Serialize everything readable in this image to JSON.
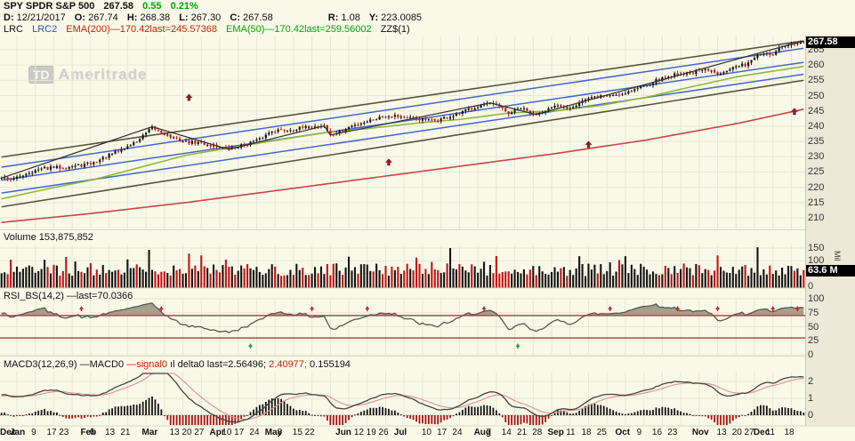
{
  "header": {
    "symbol": "SPY SPDR S&P 500",
    "last_price": "267.58",
    "change": "0.55",
    "change_pct": "0.21%",
    "d_label": "D:",
    "d_value": "12/21/2017",
    "o_label": "O:",
    "o_value": "267.74",
    "h_label": "H:",
    "h_value": "268.38",
    "l_label": "L:",
    "l_value": "267.30",
    "c_label": "C:",
    "c_value": "267.58",
    "r_label": "R:",
    "r_value": "1.08",
    "y_label": "Y:",
    "y_value": "223.0085",
    "legend_lrc": "LRC",
    "legend_lrc2": "LRC2",
    "legend_ema200": "EMA(200)—170.42last=245.57368",
    "legend_ema50": "EMA(50)—170.42last=259.56002",
    "legend_zz": "ZZ$(1)"
  },
  "watermark": {
    "td": "TD",
    "name": "Ameritrade"
  },
  "volume_label": "Volume 153,875,852",
  "rsi_label": "RSI_BS(14,2) —last=70.0366",
  "macd_label": {
    "name": "MACD3(12,26,9)",
    "macd": "—MACD0",
    "signal": "—signal0",
    "hist_icon": "ıl",
    "delta": "delta0",
    "last": "last=2.56496;",
    "sig_last": "2.40977;",
    "delta_last": "0.155194"
  },
  "badges": {
    "price_last": "267.58",
    "volume_last": "63.6 M"
  },
  "axis_unit": "Mil",
  "colors": {
    "candle_up": "#141414",
    "candle_down": "#c41414",
    "vol_up": "#141414",
    "vol_down": "#c41414",
    "ema50": "#8fb83e",
    "ema200": "#c94442",
    "lrc_dark": "#55543c",
    "lrc2_blue": "#4466cc",
    "zigzag": "#33312c",
    "rsi_line": "#5a564e",
    "rsi_band": "#b04848",
    "rsi_fill": "#8f8c76",
    "macd_line": "#44423a",
    "signal_line": "#e09090",
    "hist_up": "#141414",
    "hist_down": "#aa1111",
    "arrow": "#8b1f1f",
    "marker_red": "#cc2222",
    "marker_green": "#2a9a2a",
    "grid": "#e7e7d3",
    "background": "#f9f9e9",
    "gutter": "#ece9d8"
  },
  "chart_data": {
    "type": "candlestick-multi-panel",
    "seed": 42,
    "x_axis": {
      "days": 262,
      "labels": [
        {
          "t": "Dec",
          "d": 0
        },
        {
          "t": "Jan",
          "d": 5
        },
        {
          "t": "9",
          "d": 12
        },
        {
          "t": "17",
          "d": 17
        },
        {
          "t": "23",
          "d": 21
        },
        {
          "t": "Feb",
          "d": 28
        },
        {
          "t": "6",
          "d": 31
        },
        {
          "t": "13",
          "d": 36
        },
        {
          "t": "21",
          "d": 41
        },
        {
          "t": "Mar",
          "d": 48
        },
        {
          "t": "13",
          "d": 57
        },
        {
          "t": "20",
          "d": 61
        },
        {
          "t": "27",
          "d": 65
        },
        {
          "t": "Apr",
          "d": 70
        },
        {
          "t": "10",
          "d": 74
        },
        {
          "t": "17",
          "d": 78
        },
        {
          "t": "24",
          "d": 83
        },
        {
          "t": "May",
          "d": 88
        },
        {
          "t": "8",
          "d": 92
        },
        {
          "t": "15",
          "d": 97
        },
        {
          "t": "22",
          "d": 101
        },
        {
          "t": "Jun",
          "d": 111
        },
        {
          "t": "12",
          "d": 117
        },
        {
          "t": "19",
          "d": 121
        },
        {
          "t": "26",
          "d": 125
        },
        {
          "t": "Jul",
          "d": 130
        },
        {
          "t": "10",
          "d": 139
        },
        {
          "t": "17",
          "d": 144
        },
        {
          "t": "24",
          "d": 149
        },
        {
          "t": "Aug",
          "d": 156
        },
        {
          "t": "7",
          "d": 160
        },
        {
          "t": "14",
          "d": 165
        },
        {
          "t": "21",
          "d": 170
        },
        {
          "t": "28",
          "d": 175
        },
        {
          "t": "Sep",
          "d": 180
        },
        {
          "t": "11",
          "d": 186
        },
        {
          "t": "18",
          "d": 191
        },
        {
          "t": "25",
          "d": 196
        },
        {
          "t": "Oct",
          "d": 202
        },
        {
          "t": "9",
          "d": 209
        },
        {
          "t": "16",
          "d": 214
        },
        {
          "t": "23",
          "d": 219
        },
        {
          "t": "Nov",
          "d": 227
        },
        {
          "t": "13",
          "d": 235
        },
        {
          "t": "20",
          "d": 240
        },
        {
          "t": "27",
          "d": 244
        },
        {
          "t": "Dec",
          "d": 247
        },
        {
          "t": "11",
          "d": 251
        },
        {
          "t": "18",
          "d": 257
        }
      ]
    },
    "price_panel": {
      "ticks": [
        265,
        260,
        255,
        250,
        245,
        240,
        235,
        230,
        225,
        220,
        215,
        210
      ],
      "last": 267.58,
      "close_anchors": [
        [
          0,
          223.3
        ],
        [
          4,
          222.6
        ],
        [
          8,
          224.6
        ],
        [
          14,
          226.2
        ],
        [
          20,
          226.6
        ],
        [
          26,
          227.2
        ],
        [
          30,
          228.0
        ],
        [
          34,
          230.0
        ],
        [
          40,
          232.8
        ],
        [
          44,
          235.0
        ],
        [
          49,
          239.4
        ],
        [
          52,
          238.0
        ],
        [
          56,
          236.0
        ],
        [
          60,
          234.8
        ],
        [
          64,
          234.6
        ],
        [
          68,
          233.8
        ],
        [
          74,
          232.6
        ],
        [
          78,
          233.6
        ],
        [
          84,
          235.6
        ],
        [
          88,
          238.6
        ],
        [
          94,
          238.9
        ],
        [
          100,
          239.6
        ],
        [
          105,
          240.2
        ],
        [
          107,
          236.9
        ],
        [
          110,
          238.2
        ],
        [
          114,
          240.0
        ],
        [
          118,
          241.4
        ],
        [
          124,
          243.2
        ],
        [
          128,
          243.6
        ],
        [
          132,
          242.6
        ],
        [
          136,
          242.3
        ],
        [
          140,
          241.7
        ],
        [
          144,
          242.6
        ],
        [
          148,
          243.6
        ],
        [
          152,
          245.6
        ],
        [
          157,
          247.2
        ],
        [
          161,
          246.9
        ],
        [
          165,
          244.1
        ],
        [
          169,
          245.9
        ],
        [
          173,
          243.8
        ],
        [
          177,
          245.4
        ],
        [
          181,
          246.4
        ],
        [
          185,
          246.1
        ],
        [
          189,
          248.4
        ],
        [
          195,
          249.9
        ],
        [
          201,
          250.4
        ],
        [
          207,
          252.4
        ],
        [
          213,
          254.9
        ],
        [
          219,
          256.9
        ],
        [
          225,
          257.7
        ],
        [
          229,
          258.4
        ],
        [
          233,
          257.3
        ],
        [
          237,
          258.9
        ],
        [
          242,
          260.2
        ],
        [
          245,
          262.6
        ],
        [
          248,
          263.9
        ],
        [
          250,
          262.8
        ],
        [
          253,
          265.3
        ],
        [
          256,
          266.3
        ],
        [
          259,
          267.2
        ],
        [
          261,
          267.58
        ]
      ],
      "ema50_anchors": [
        [
          0,
          216.2
        ],
        [
          15,
          219.5
        ],
        [
          30,
          222.5
        ],
        [
          45,
          226.5
        ],
        [
          60,
          230.5
        ],
        [
          75,
          233.0
        ],
        [
          90,
          235.5
        ],
        [
          105,
          237.8
        ],
        [
          120,
          239.3
        ],
        [
          135,
          241.0
        ],
        [
          150,
          242.3
        ],
        [
          165,
          244.3
        ],
        [
          180,
          245.0
        ],
        [
          195,
          246.8
        ],
        [
          210,
          249.5
        ],
        [
          225,
          253.0
        ],
        [
          240,
          256.3
        ],
        [
          261,
          259.56
        ]
      ],
      "ema200_anchors": [
        [
          0,
          208.5
        ],
        [
          30,
          211.5
        ],
        [
          60,
          215.0
        ],
        [
          90,
          219.0
        ],
        [
          120,
          223.0
        ],
        [
          150,
          227.0
        ],
        [
          180,
          231.0
        ],
        [
          210,
          235.5
        ],
        [
          240,
          241.0
        ],
        [
          261,
          245.57
        ]
      ],
      "lrc_dark": [
        [
          229.9,
          267.9
        ],
        [
          213.6,
          255.0
        ]
      ],
      "lrc2_blue": [
        [
          226.6,
          265.5
        ],
        [
          222.3,
          260.9
        ],
        [
          218.1,
          257.0
        ]
      ],
      "arrows": [
        [
          61,
          249.3
        ],
        [
          126,
          228.1
        ],
        [
          191,
          233.9
        ],
        [
          258,
          244.7
        ]
      ]
    },
    "volume_panel": {
      "ticks": [
        150,
        100,
        0
      ],
      "last": 63.6,
      "spikes": [
        [
          21,
          115
        ],
        [
          48,
          143
        ],
        [
          61,
          128
        ],
        [
          146,
          150
        ],
        [
          188,
          118
        ],
        [
          246,
          153
        ]
      ]
    },
    "rsi_panel": {
      "ticks": [
        100,
        75,
        50,
        25,
        0
      ],
      "upper_band": 70,
      "lower_band": 30,
      "last": 70.0366,
      "red_marker_days": [
        26,
        52,
        101,
        119,
        157,
        198,
        220,
        233,
        251,
        259
      ],
      "green_marker_days": [
        81,
        168
      ]
    },
    "macd_panel": {
      "ticks": [
        2,
        1,
        0
      ],
      "last_macd": 2.56496,
      "last_signal": 2.40977,
      "last_delta": 0.155194
    }
  }
}
